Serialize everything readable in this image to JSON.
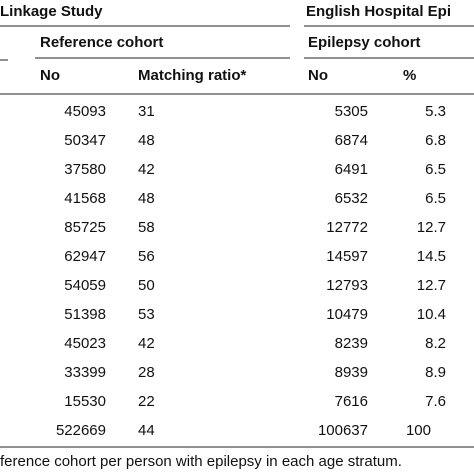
{
  "header": {
    "left_group": "Linkage Study",
    "right_group": "English Hospital Epi"
  },
  "subheader": {
    "left": "Reference cohort",
    "right": "Epilepsy cohort"
  },
  "columns": [
    "No",
    "Matching ratio*",
    "No",
    "%"
  ],
  "table": {
    "rows": [
      [
        45093,
        31,
        5305,
        5.3
      ],
      [
        50347,
        48,
        6874,
        6.8
      ],
      [
        37580,
        42,
        6491,
        6.5
      ],
      [
        41568,
        48,
        6532,
        6.5
      ],
      [
        85725,
        58,
        12772,
        12.7
      ],
      [
        62947,
        56,
        14597,
        14.5
      ],
      [
        54059,
        50,
        12793,
        12.7
      ],
      [
        51398,
        53,
        10479,
        10.4
      ],
      [
        45023,
        42,
        8239,
        8.2
      ],
      [
        33399,
        28,
        8939,
        8.9
      ],
      [
        15530,
        22,
        7616,
        7.6
      ],
      [
        522669,
        44,
        100637,
        100
      ]
    ]
  },
  "footnote": "ference cohort per person with epilepsy in each age stratum."
}
